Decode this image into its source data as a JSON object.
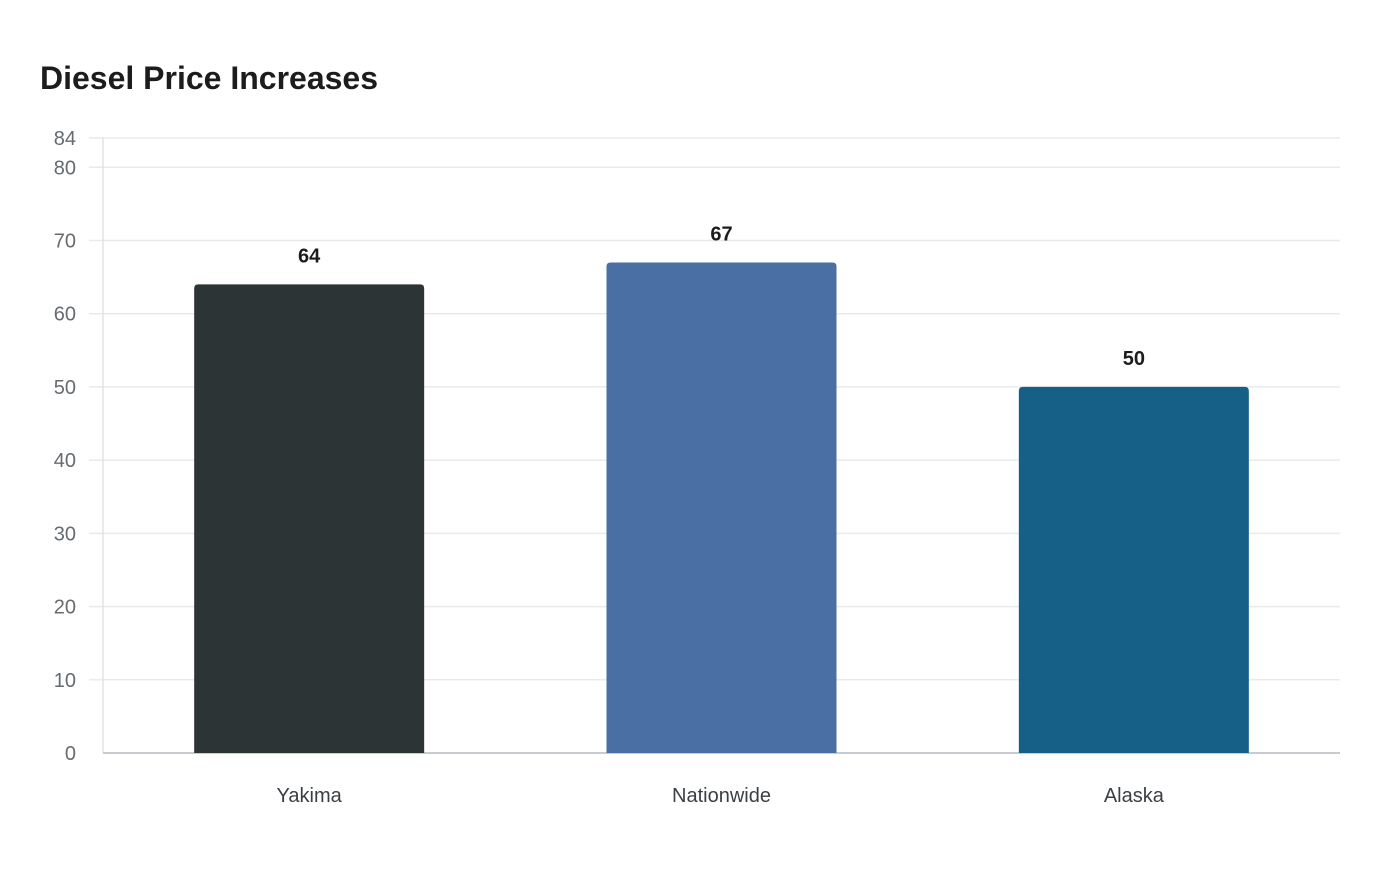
{
  "chart_data": {
    "type": "bar",
    "title": "Diesel Price Increases",
    "xlabel": "",
    "ylabel": "",
    "categories": [
      "Yakima",
      "Nationwide",
      "Alaska"
    ],
    "values": [
      64,
      67,
      50
    ],
    "colors": [
      "#2d3436",
      "#4a6fa5",
      "#166088"
    ],
    "ylim": [
      0,
      84
    ],
    "yticks": [
      0,
      10,
      20,
      30,
      40,
      50,
      60,
      70,
      80,
      84
    ],
    "grid": true,
    "legend": "none"
  }
}
